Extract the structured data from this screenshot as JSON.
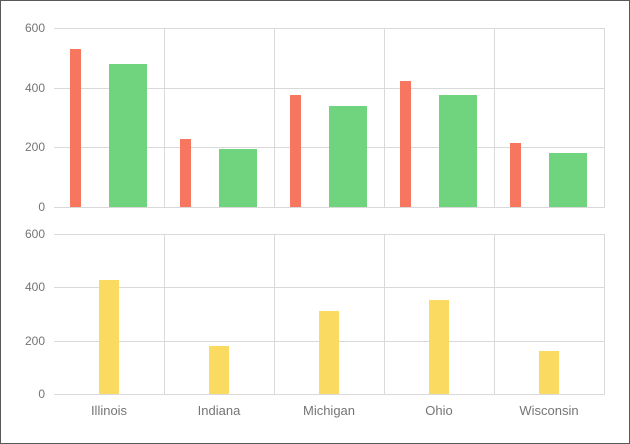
{
  "widget": {
    "background": "#ffffff",
    "border_color": "#595959"
  },
  "axis": {
    "tick_label_color": "#757575",
    "gridline_color": "#d9d9d9",
    "category_label_color": "#757575"
  },
  "chart_data": [
    {
      "type": "bar",
      "panel": "top",
      "title": "",
      "xlabel": "",
      "ylabel": "",
      "categories": [
        "Illinois",
        "Indiana",
        "Michigan",
        "Ohio",
        "Wisconsin"
      ],
      "series": [
        {
          "name": "red-series",
          "color": "#f7765f",
          "values": [
            530,
            229,
            374,
            421,
            213
          ]
        },
        {
          "name": "green-series",
          "color": "#6fd47d",
          "values": [
            478,
            196,
            337,
            376,
            182
          ]
        }
      ],
      "ylim": [
        0,
        600
      ],
      "yticks": [
        0,
        200,
        400,
        600
      ],
      "grid": true,
      "legend": "none",
      "x_tick_labels_visible": false
    },
    {
      "type": "bar",
      "panel": "bottom",
      "title": "",
      "xlabel": "",
      "ylabel": "",
      "categories": [
        "Illinois",
        "Indiana",
        "Michigan",
        "Ohio",
        "Wisconsin"
      ],
      "series": [
        {
          "name": "yellow-series",
          "color": "#fada60",
          "values": [
            428,
            181,
            313,
            353,
            160
          ]
        }
      ],
      "ylim": [
        0,
        600
      ],
      "yticks": [
        0,
        200,
        400,
        600
      ],
      "grid": true,
      "legend": "none",
      "x_tick_labels_visible": true
    }
  ]
}
